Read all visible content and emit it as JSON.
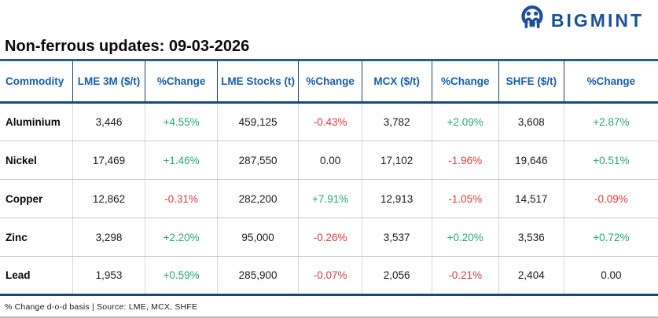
{
  "brand": {
    "name": "BIGMINT",
    "logo_icon": "bigmint-people-m-icon",
    "logo_color": "#1b4f9c"
  },
  "header": {
    "title": "Non-ferrous updates: 09-03-2026"
  },
  "footer": {
    "note": "% Change d-o-d basis | Source: LME, MCX, SHFE"
  },
  "colors": {
    "header_text_blue": "#185dab",
    "thick_border_blue": "#17497c",
    "title_rule_blue": "#1d5fa0",
    "positive_green": "#26a96c",
    "negative_red": "#e03c3c",
    "logo_blue": "#1b4f9c"
  },
  "chart_data": {
    "type": "table",
    "title": "Non-ferrous updates: 09-03-2026",
    "columns": [
      "Commodity",
      "LME 3M ($/t)",
      "%Change",
      "LME Stocks (t)",
      "%Change",
      "MCX ($/t)",
      "%Change",
      "SHFE ($/t)",
      "%Change"
    ],
    "rows": [
      [
        "Aluminium",
        "3,446",
        "+4.55%",
        "459,125",
        "-0.43%",
        "3,782",
        "+2.09%",
        "3,608",
        "+2.87%"
      ],
      [
        "Nickel",
        "17,469",
        "+1.46%",
        "287,550",
        "0.00",
        "17,102",
        "-1.96%",
        "19,646",
        "+0.51%"
      ],
      [
        "Copper",
        "12,862",
        "-0.31%",
        "282,200",
        "+7.91%",
        "12,913",
        "-1.05%",
        "14,517",
        "-0.09%"
      ],
      [
        "Zinc",
        "3,298",
        "+2.20%",
        "95,000",
        "-0.26%",
        "3,537",
        "+0.20%",
        "3,536",
        "+0.72%"
      ],
      [
        "Lead",
        "1,953",
        "+0.59%",
        "285,900",
        "-0.07%",
        "2,056",
        "-0.21%",
        "2,404",
        "0.00"
      ]
    ],
    "value_color_rule": "values prefixed + are green, prefixed - are red, others black",
    "sources": [
      "LME",
      "MCX",
      "SHFE"
    ]
  }
}
